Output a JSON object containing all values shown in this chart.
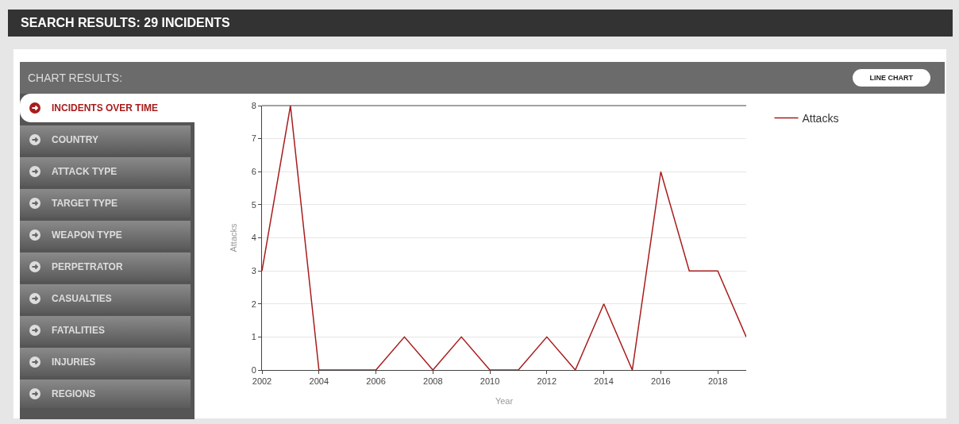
{
  "chart_data": {
    "type": "line",
    "title": "SEARCH RESULTS: 29 INCIDENTS",
    "subtitle": "CHART RESULTS:",
    "annotations": [
      "LINE CHART",
      "INCIDENTS OVER TIME",
      "COUNTRY",
      "ATTACK TYPE",
      "TARGET TYPE",
      "WEAPON TYPE",
      "PERPETRATOR",
      "CASUALTIES",
      "FATALITIES",
      "INJURIES",
      "REGIONS"
    ],
    "xlabel": "Year",
    "ylabel": "Attacks",
    "x": [
      2002,
      2003,
      2004,
      2005,
      2006,
      2007,
      2008,
      2009,
      2010,
      2011,
      2012,
      2013,
      2014,
      2015,
      2016,
      2017,
      2018,
      2019
    ],
    "series": [
      {
        "name": "Attacks",
        "color": "#a81c1c",
        "values": [
          3,
          8,
          0,
          0,
          0,
          1,
          0,
          1,
          0,
          0,
          1,
          0,
          2,
          0,
          6,
          3,
          3,
          1
        ]
      }
    ],
    "xlim": [
      2002,
      2019
    ],
    "xticks": [
      2002,
      2004,
      2006,
      2008,
      2010,
      2012,
      2014,
      2016,
      2018
    ],
    "ylim": [
      0,
      8
    ],
    "yticks": [
      0,
      1,
      2,
      3,
      4,
      5,
      6,
      7,
      8
    ],
    "grid": "y",
    "legend": "top right",
    "marker": "none",
    "line_style": "solid"
  }
}
